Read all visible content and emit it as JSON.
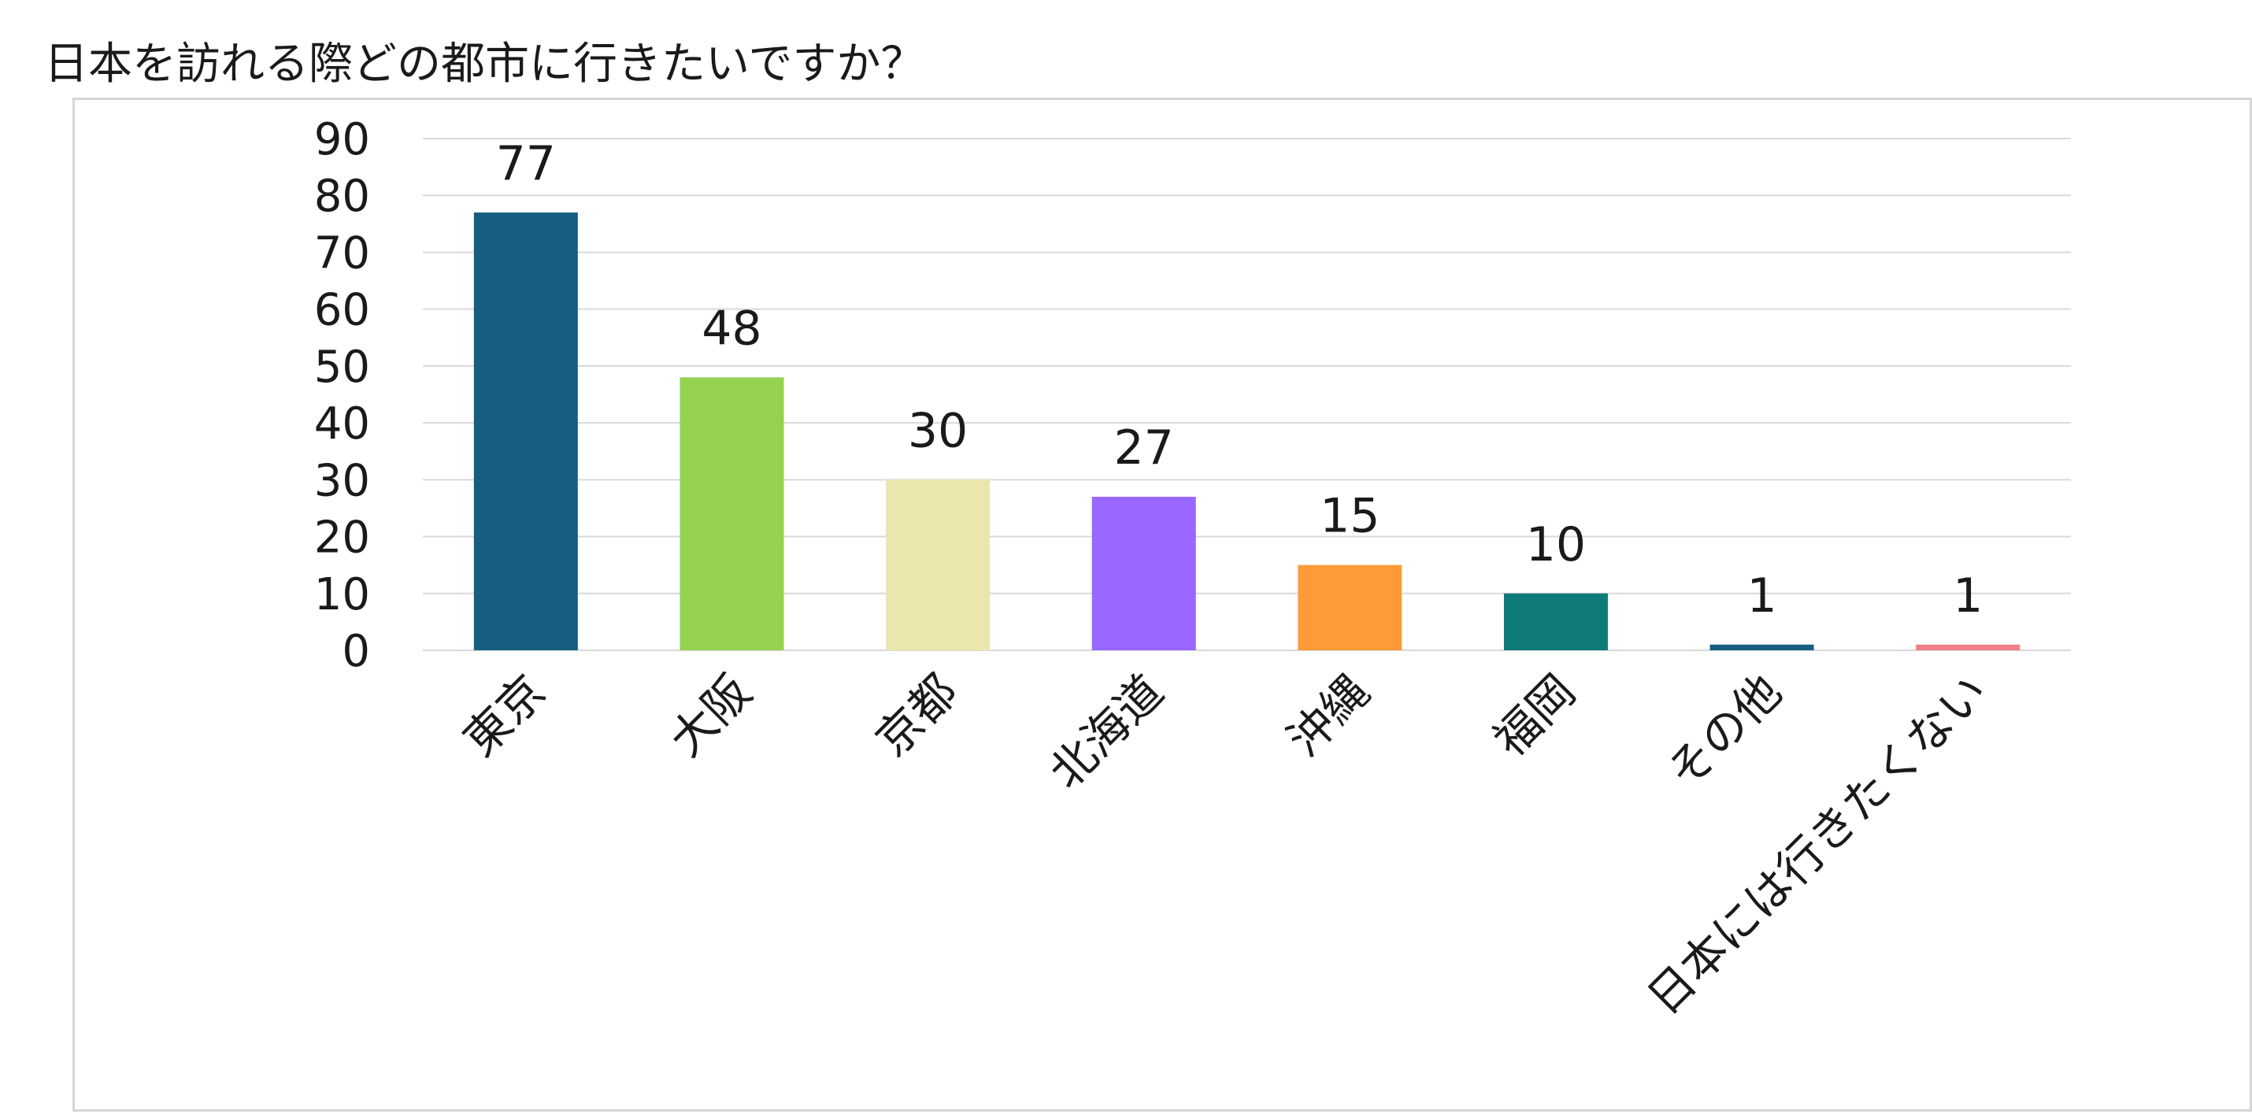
{
  "question_title": "日本を訪れる際どの都市に行きたいですか？",
  "chart_data": {
    "type": "bar",
    "title": "日本を訪れる際どの都市に行きたいですか？",
    "xlabel": "",
    "ylabel": "",
    "ylim": [
      0,
      90
    ],
    "ytick_step": 10,
    "yticks": [
      "0",
      "10",
      "20",
      "30",
      "40",
      "50",
      "60",
      "70",
      "80",
      "90"
    ],
    "grid": true,
    "legend": "none",
    "categories": [
      "東京",
      "大阪",
      "京都",
      "北海道",
      "沖縄",
      "福岡",
      "その他",
      "日本には行きたくない"
    ],
    "values": [
      77,
      48,
      30,
      27,
      15,
      10,
      1,
      1
    ],
    "bar_colors": [
      "#165e80",
      "#94d250",
      "#ebe6ad",
      "#9966ff",
      "#ff9a38",
      "#0e7a7a",
      "#165e80",
      "#f17f85"
    ],
    "data_labels": [
      "77",
      "48",
      "30",
      "27",
      "15",
      "10",
      "1",
      "1"
    ],
    "gridline_color": "#d9d9d9",
    "frame_border_color": "#d6d6d6"
  }
}
